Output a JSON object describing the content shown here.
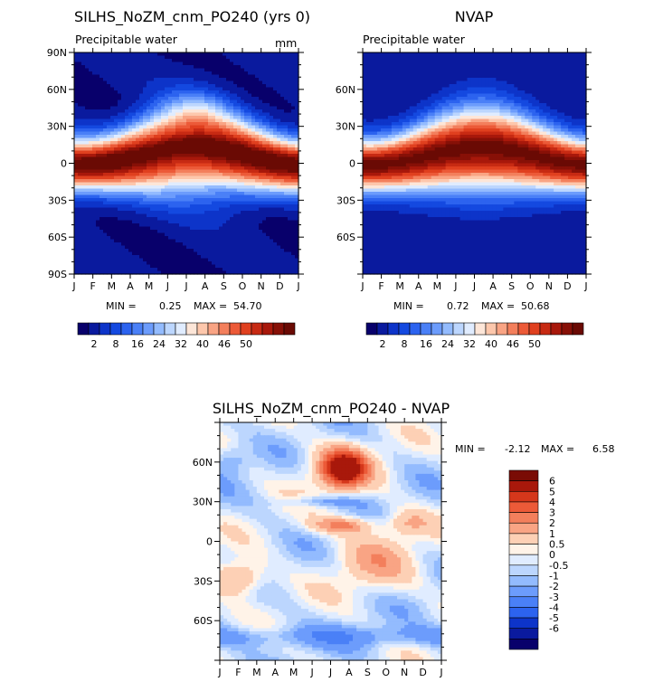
{
  "palette_20": [
    "#08006b",
    "#0a1a9e",
    "#0d34c9",
    "#1449e0",
    "#2c63ef",
    "#4a80f7",
    "#6c9cfc",
    "#93bbfe",
    "#bcd6fe",
    "#e0ecff",
    "#fde6d8",
    "#fdc7ac",
    "#f9a484",
    "#f37f5c",
    "#ec5a38",
    "#e0401f",
    "#c72a13",
    "#a8180b",
    "#871007",
    "#6a0a04"
  ],
  "palette_16": [
    "#08006b",
    "#0a1a9e",
    "#0d34c9",
    "#2c63ef",
    "#4a80f7",
    "#6c9cfc",
    "#93bbfe",
    "#bcd6fe",
    "#e0ecff",
    "#fff3e8",
    "#fdd0b5",
    "#f9a484",
    "#f37f5c",
    "#ec5a38",
    "#d5371b",
    "#a8180b",
    "#7a0c05"
  ],
  "months": [
    "J",
    "F",
    "M",
    "A",
    "M",
    "J",
    "J",
    "A",
    "S",
    "O",
    "N",
    "D",
    "J"
  ],
  "panel1": {
    "title": "SILHS_NoZM_cnm_PO240 (yrs 0)",
    "subtitle": "Precipitable water",
    "units": "mm",
    "min_label": "MIN =",
    "min_value": "0.25",
    "max_label": "MAX =",
    "max_value": "54.70"
  },
  "panel2": {
    "title": "NVAP",
    "subtitle": "Precipitable water",
    "min_label": "MIN =",
    "min_value": "0.72",
    "max_label": "MAX =",
    "max_value": "50.68"
  },
  "panel3": {
    "title": "SILHS_NoZM_cnm_PO240 - NVAP",
    "min_label": "MIN =",
    "min_value": "-2.12",
    "max_label": "MAX =",
    "max_value": "6.58"
  },
  "chart_data": [
    {
      "type": "heatmap",
      "title": "SILHS_NoZM_cnm_PO240 (yrs 0)",
      "subtitle": "Precipitable water",
      "units": "mm",
      "x_ticks": [
        "J",
        "F",
        "M",
        "A",
        "M",
        "J",
        "J",
        "A",
        "S",
        "O",
        "N",
        "D",
        "J"
      ],
      "y_ticks": [
        "90N",
        "60N",
        "30N",
        "0",
        "30S",
        "60S",
        "90S"
      ],
      "ylim": [
        -90,
        90
      ],
      "colorbar_ticks": [
        "2",
        "8",
        "16",
        "24",
        "32",
        "40",
        "46",
        "50"
      ],
      "min": 0.25,
      "max": 54.7
    },
    {
      "type": "heatmap",
      "title": "NVAP",
      "subtitle": "Precipitable water",
      "x_ticks": [
        "J",
        "F",
        "M",
        "A",
        "M",
        "J",
        "J",
        "A",
        "S",
        "O",
        "N",
        "D",
        "J"
      ],
      "y_ticks": [
        "60N",
        "30N",
        "0",
        "30S",
        "60S"
      ],
      "ylim": [
        -90,
        90
      ],
      "colorbar_ticks": [
        "2",
        "8",
        "16",
        "24",
        "32",
        "40",
        "46",
        "50"
      ],
      "min": 0.72,
      "max": 50.68
    },
    {
      "type": "heatmap",
      "title": "SILHS_NoZM_cnm_PO240 - NVAP",
      "x_ticks": [
        "J",
        "F",
        "M",
        "A",
        "M",
        "J",
        "J",
        "A",
        "S",
        "O",
        "N",
        "D",
        "J"
      ],
      "y_ticks": [
        "60N",
        "30N",
        "0",
        "30S",
        "60S"
      ],
      "ylim": [
        -90,
        90
      ],
      "colorbar_ticks": [
        "6",
        "5",
        "4",
        "3",
        "2",
        "1",
        "0.5",
        "0",
        "-0.5",
        "-1",
        "-2",
        "-3",
        "-4",
        "-5",
        "-6"
      ],
      "min": -2.12,
      "max": 6.58
    }
  ]
}
